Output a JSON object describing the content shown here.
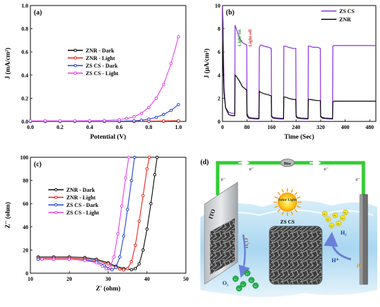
{
  "chart_data": [
    {
      "panel": "(a)",
      "type": "line",
      "xlabel": "Potential (V)",
      "ylabel": "J (mA/cm²)",
      "xlim": [
        0,
        1.05
      ],
      "ylim": [
        0,
        1.0
      ],
      "xticks": [
        0.0,
        0.2,
        0.4,
        0.6,
        0.8,
        1.0
      ],
      "xtick_labels": [
        "0.0",
        "0.2",
        "0.4",
        "0.6",
        "0.8",
        "1.0"
      ],
      "yticks": [
        0.0,
        0.2,
        0.4,
        0.6,
        0.8,
        1.0
      ],
      "ytick_labels": [
        "0.0",
        "0.2",
        "0.4",
        "0.6",
        "0.8",
        "1.0"
      ],
      "legend": "left",
      "series": [
        {
          "name": "ZNR - Dark",
          "color": "#000000",
          "x": [
            0,
            0.1,
            0.2,
            0.3,
            0.4,
            0.5,
            0.6,
            0.7,
            0.8,
            0.9,
            1.0
          ],
          "y": [
            0,
            0,
            0,
            0,
            0,
            0,
            0,
            0,
            0.001,
            0.002,
            0.004
          ]
        },
        {
          "name": "ZNR - Light",
          "color": "#e8201a",
          "x": [
            0,
            0.1,
            0.2,
            0.3,
            0.4,
            0.5,
            0.6,
            0.7,
            0.8,
            0.9,
            1.0
          ],
          "y": [
            0,
            0,
            0,
            0,
            0,
            0,
            0,
            0.001,
            0.002,
            0.004,
            0.006
          ]
        },
        {
          "name": "ZS CS - Dark",
          "color": "#1f3fd1",
          "x": [
            0,
            0.1,
            0.2,
            0.3,
            0.4,
            0.5,
            0.6,
            0.7,
            0.75,
            0.8,
            0.85,
            0.9,
            0.95,
            1.0
          ],
          "y": [
            0,
            0,
            0,
            0,
            0,
            0,
            0.002,
            0.005,
            0.01,
            0.02,
            0.035,
            0.06,
            0.095,
            0.145
          ]
        },
        {
          "name": "ZS CS - Light",
          "color": "#e83ee8",
          "x": [
            0,
            0.1,
            0.2,
            0.3,
            0.4,
            0.5,
            0.6,
            0.65,
            0.7,
            0.75,
            0.8,
            0.85,
            0.9,
            0.95,
            1.0
          ],
          "y": [
            0.005,
            0.005,
            0.005,
            0.005,
            0.006,
            0.008,
            0.015,
            0.025,
            0.04,
            0.07,
            0.12,
            0.2,
            0.32,
            0.5,
            0.73
          ]
        }
      ]
    },
    {
      "panel": "(b)",
      "type": "line",
      "xlabel": "Time (Sec)",
      "ylabel": "J (μA/cm²)",
      "xlim": [
        0,
        500
      ],
      "ylim": [
        0,
        10
      ],
      "xticks": [
        0,
        80,
        160,
        240,
        320,
        400,
        480
      ],
      "xtick_labels": [
        "0",
        "80",
        "160",
        "240",
        "320",
        "400",
        "480"
      ],
      "yticks": [
        0,
        2,
        4,
        6,
        8,
        10
      ],
      "ytick_labels": [
        "0",
        "2",
        "4",
        "6",
        "8",
        "10"
      ],
      "legend": "top-right",
      "annotations": [
        {
          "text": "Light-on",
          "color": "#1a8a1a",
          "x": 60,
          "y": 7.2
        },
        {
          "text": "Light-off",
          "color": "#e8201a",
          "x": 95,
          "y": 7.2
        }
      ],
      "series": [
        {
          "name": "ZS CS",
          "color": "#8a2be2",
          "x": [
            0,
            2,
            5,
            10,
            20,
            30,
            40,
            41,
            45,
            55,
            65,
            79,
            80,
            85,
            95,
            110,
            119,
            120,
            125,
            135,
            150,
            159,
            160,
            165,
            175,
            190,
            199,
            200,
            205,
            215,
            230,
            239,
            240,
            245,
            255,
            270,
            279,
            280,
            285,
            295,
            310,
            319,
            320,
            325,
            335,
            350,
            359,
            360,
            365,
            400,
            440,
            500
          ],
          "y": [
            10,
            8.5,
            3,
            1.2,
            0.8,
            0.7,
            0.7,
            8.3,
            8.0,
            7.2,
            6.8,
            6.6,
            0.7,
            0.4,
            0.3,
            0.28,
            0.28,
            6.4,
            6.6,
            6.5,
            6.4,
            6.3,
            0.5,
            0.35,
            0.3,
            0.28,
            0.28,
            6.5,
            6.5,
            6.4,
            6.3,
            6.3,
            0.5,
            0.35,
            0.3,
            0.28,
            0.28,
            6.5,
            6.5,
            6.4,
            6.4,
            6.3,
            0.5,
            0.35,
            0.3,
            0.28,
            0.28,
            6.5,
            6.55,
            6.55,
            6.55,
            6.55
          ]
        },
        {
          "name": "ZNR",
          "color": "#000000",
          "x": [
            0,
            2,
            5,
            10,
            20,
            30,
            40,
            41,
            45,
            55,
            65,
            79,
            80,
            85,
            95,
            110,
            119,
            120,
            125,
            135,
            150,
            159,
            160,
            165,
            175,
            190,
            199,
            200,
            205,
            215,
            230,
            239,
            240,
            245,
            255,
            270,
            279,
            280,
            285,
            295,
            310,
            319,
            320,
            325,
            335,
            350,
            359,
            360,
            365,
            400,
            440,
            500
          ],
          "y": [
            7,
            5,
            2.5,
            1.2,
            0.6,
            0.5,
            0.5,
            4.0,
            3.9,
            3.5,
            3.0,
            2.7,
            0.5,
            0.3,
            0.25,
            0.22,
            0.22,
            2.6,
            2.5,
            2.4,
            2.3,
            2.2,
            0.4,
            0.3,
            0.25,
            0.22,
            0.22,
            2.1,
            2.1,
            2.0,
            1.9,
            1.9,
            0.4,
            0.3,
            0.25,
            0.22,
            0.22,
            1.9,
            1.9,
            1.85,
            1.8,
            1.8,
            0.4,
            0.3,
            0.25,
            0.22,
            0.22,
            1.7,
            1.75,
            1.75,
            1.75,
            1.75
          ]
        }
      ]
    },
    {
      "panel": "(c)",
      "type": "line",
      "xlabel": "Z' (ohm)",
      "ylabel": "Z'' (ohm)",
      "xlim": [
        10,
        50
      ],
      "ylim": [
        0,
        100
      ],
      "xticks": [
        10,
        20,
        30,
        40,
        50
      ],
      "xtick_labels": [
        "10",
        "20",
        "30",
        "40",
        "50"
      ],
      "yticks": [
        0,
        20,
        40,
        60,
        80,
        100
      ],
      "ytick_labels": [
        "0",
        "20",
        "40",
        "60",
        "80",
        "100"
      ],
      "legend": "top-left",
      "series": [
        {
          "name": "ZNR - Dark",
          "color": "#000000",
          "x": [
            12,
            16,
            20,
            24,
            27,
            30,
            32,
            34,
            36,
            37,
            38,
            39,
            40,
            41,
            42,
            42.6
          ],
          "y": [
            14,
            14,
            14,
            13.5,
            12,
            9,
            6,
            4,
            3,
            4,
            8,
            20,
            38,
            60,
            85,
            100
          ]
        },
        {
          "name": "ZNR - Light",
          "color": "#e8201a",
          "x": [
            12,
            16,
            20,
            24,
            27,
            30,
            32,
            33,
            34,
            35,
            36,
            37,
            38,
            39,
            40,
            40.6
          ],
          "y": [
            13,
            13,
            13,
            12.5,
            11,
            8,
            5,
            3.5,
            2.8,
            4,
            10,
            24,
            45,
            67,
            90,
            100
          ]
        },
        {
          "name": "ZS CS - Dark",
          "color": "#1f3fd1",
          "x": [
            12,
            16,
            20,
            24,
            27,
            29,
            30,
            31,
            32,
            33,
            34,
            35,
            36,
            36.8
          ],
          "y": [
            12,
            12,
            12,
            11.5,
            10,
            7,
            4,
            3,
            5,
            14,
            32,
            55,
            80,
            100
          ]
        },
        {
          "name": "ZS CS - Light",
          "color": "#e83ee8",
          "x": [
            13,
            16,
            20,
            24,
            27,
            28.5,
            29.5,
            30.5,
            31.5,
            32.5,
            33.5,
            34.5,
            35.3
          ],
          "y": [
            12,
            12,
            12,
            11,
            9,
            6,
            4,
            5,
            14,
            34,
            58,
            82,
            100
          ]
        }
      ]
    },
    {
      "panel": "(d)",
      "type": "diagram",
      "labels": {
        "bias": "Bias",
        "electron_left": "e⁻",
        "electron_top_left": "e⁻",
        "electron_top_right": "e⁻",
        "electron_right": "e⁻",
        "ito": "ITO",
        "sun": "Solar Light",
        "material": "ZS CS",
        "water": "H₂O",
        "oxygen": "O₂",
        "hydrogen": "H₂",
        "proton": "H⁺",
        "cathode": "Pt",
        "bubble_o2": "O₂",
        "bubble_h2": "H₂"
      }
    }
  ]
}
